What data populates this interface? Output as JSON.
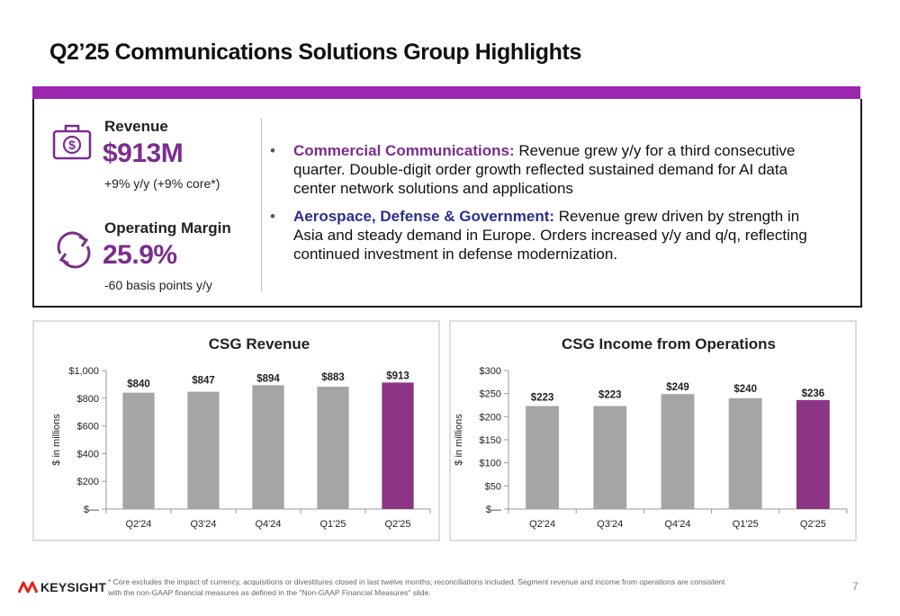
{
  "title": "Q2’25 Communications Solutions Group Highlights",
  "colors": {
    "accent": "#9b27af",
    "purple_text": "#7b2d8e",
    "navy_text": "#2b2f8f",
    "bar_gray": "#a5a5a5",
    "bar_highlight": "#8c3584"
  },
  "kpis": {
    "revenue": {
      "icon": "money-bag-icon",
      "label": "Revenue",
      "value": "$913M",
      "sub": "+9% y/y (+9% core*)"
    },
    "margin": {
      "icon": "refresh-cycle-icon",
      "label": "Operating Margin",
      "value": "25.9%",
      "sub": "-60 basis points y/y"
    }
  },
  "bullets": [
    {
      "head": "Commercial Communications:",
      "text": " Revenue grew y/y for a third consecutive quarter. Double-digit order growth reflected sustained demand for AI data center network solutions and applications"
    },
    {
      "head": "Aerospace, Defense & Government:",
      "text": " Revenue grew driven by strength in Asia and steady demand in Europe. Orders increased y/y and q/q, reflecting continued investment in defense modernization."
    }
  ],
  "bullet_glyph": "•",
  "chart_data": [
    {
      "type": "bar",
      "title": "CSG Revenue",
      "ylabel": "$ in millions",
      "categories": [
        "Q2'24",
        "Q3'24",
        "Q4'24",
        "Q1'25",
        "Q2'25"
      ],
      "values": [
        840,
        847,
        894,
        883,
        913
      ],
      "value_labels": [
        "$840",
        "$847",
        "$894",
        "$883",
        "$913"
      ],
      "ylim": [
        0,
        1000
      ],
      "yticks": [
        0,
        200,
        400,
        600,
        800,
        1000
      ],
      "ytick_labels": [
        "$—",
        "$200",
        "$400",
        "$600",
        "$800",
        "$1,000"
      ],
      "highlight_index": 4,
      "grid": false
    },
    {
      "type": "bar",
      "title": "CSG Income from Operations",
      "ylabel": "$ in millions",
      "categories": [
        "Q2'24",
        "Q3'24",
        "Q4'24",
        "Q1'25",
        "Q2'25"
      ],
      "values": [
        223,
        223,
        249,
        240,
        236
      ],
      "value_labels": [
        "$223",
        "$223",
        "$249",
        "$240",
        "$236"
      ],
      "ylim": [
        0,
        300
      ],
      "yticks": [
        0,
        50,
        100,
        150,
        200,
        250,
        300
      ],
      "ytick_labels": [
        "$—",
        "$50",
        "$100",
        "$150",
        "$200",
        "$250",
        "$300"
      ],
      "highlight_index": 4,
      "grid": false
    }
  ],
  "footer": {
    "logo_text": "KEYSIGHT",
    "footnote": "* Core excludes the impact of currency, acquisitions or divestitures closed in last twelve months; reconciliations included.  Segment revenue and income from operations are consistent with the non-GAAP financial measures as defined in the \"Non-GAAP Financial Measures\" slide.",
    "page_number": "7"
  }
}
